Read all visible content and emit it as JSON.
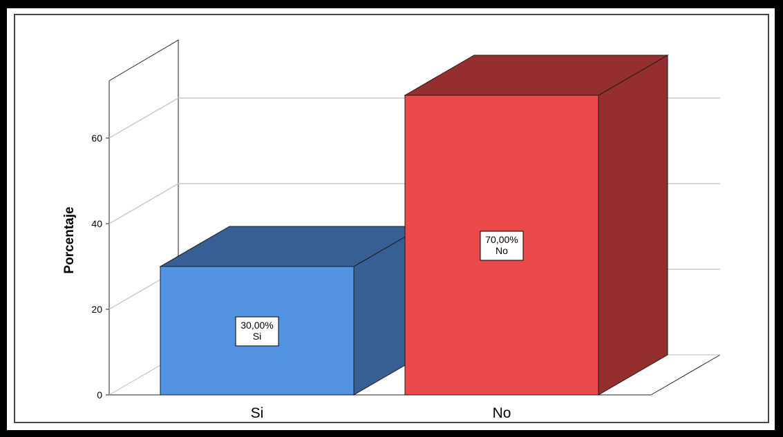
{
  "chart_data": {
    "type": "bar",
    "categories": [
      "Si",
      "No"
    ],
    "values": [
      30,
      70
    ],
    "data_labels": [
      {
        "value": "30,00%",
        "category": "Si"
      },
      {
        "value": "70,00%",
        "category": "No"
      }
    ],
    "ylabel": "Porcentaje",
    "yticks": [
      0,
      20,
      40,
      60
    ],
    "ylim": [
      0,
      75
    ],
    "grid": true,
    "style": "3d",
    "colors": {
      "Si": {
        "front": "#5394E2",
        "side": "#375F93",
        "top": "#375F93"
      },
      "No": {
        "front": "#EB4A4B",
        "side": "#942E2F",
        "top": "#942E2F"
      }
    }
  }
}
